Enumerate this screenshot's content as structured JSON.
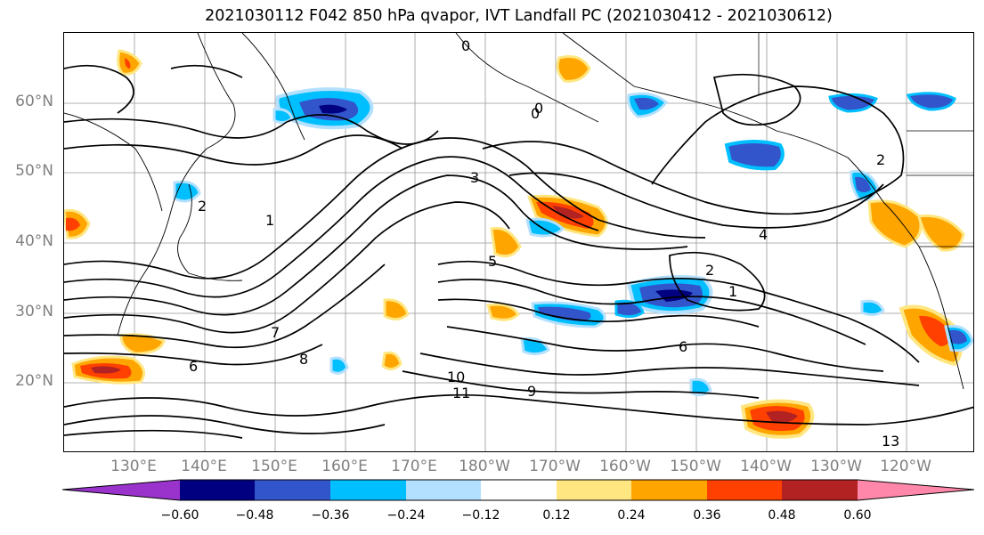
{
  "title": "2021030112 F042 850 hPa qvapor, IVT Landfall PC (2021030412 - 2021030612)",
  "lat_labels": [
    "60°N",
    "50°N",
    "40°N",
    "30°N",
    "20°N"
  ],
  "lon_labels": [
    "130°E",
    "140°E",
    "150°E",
    "160°E",
    "170°E",
    "180°W",
    "170°W",
    "160°W",
    "150°W",
    "140°W",
    "130°W",
    "120°W"
  ],
  "colorbar": {
    "colors": [
      "#9933cc",
      "#000080",
      "#3355cc",
      "#00bfff",
      "#b3e0ff",
      "#ffffff",
      "#ffe680",
      "#ffa500",
      "#ff4000",
      "#b22222",
      "#ff88aa"
    ],
    "tick_labels": [
      "−0.60",
      "−0.48",
      "−0.36",
      "−0.24",
      "−0.12",
      "0.12",
      "0.24",
      "0.36",
      "0.48",
      "0.60"
    ]
  },
  "contour_labels": [
    "0",
    "0",
    "1",
    "2",
    "2",
    "3",
    "4",
    "5",
    "6",
    "6",
    "7",
    "8",
    "9",
    "10",
    "11",
    "13",
    "1",
    "2",
    "0"
  ]
}
